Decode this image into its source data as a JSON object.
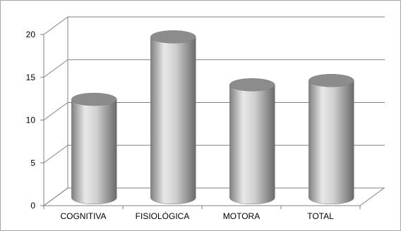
{
  "chart_data": {
    "type": "bar",
    "style": "3d-cylinder",
    "categories": [
      "COGNITIVA",
      "FISIOLÓGICA",
      "MOTORA",
      "TOTAL"
    ],
    "series": [
      {
        "values": [
          11.5,
          18.8,
          13.2,
          13.7
        ]
      }
    ],
    "ylim": [
      0,
      20
    ],
    "yticks": [
      "0",
      "5",
      "10",
      "15",
      "20"
    ],
    "grid": true,
    "legend": "none",
    "colors": {
      "bar": "#a0a0a0",
      "bar_light": "#e6e6e6",
      "bar_dark": "#6e6e6e",
      "top": "#8c8c8c",
      "grid": "#808080"
    }
  }
}
